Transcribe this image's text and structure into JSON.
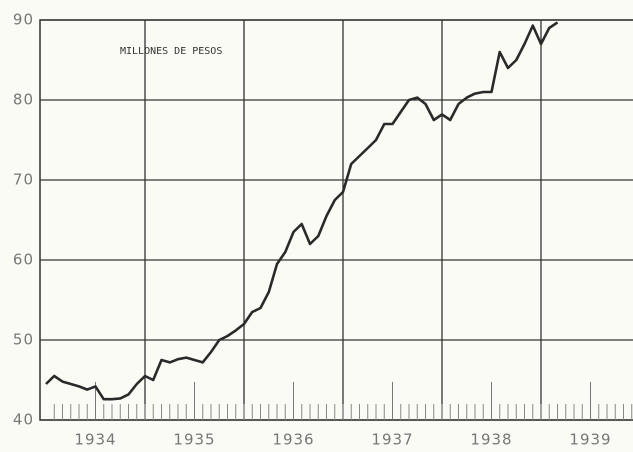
{
  "chart_data": {
    "type": "line",
    "annotation": "MILLONES DE PESOS",
    "x": [
      1934.0,
      1934.083,
      1934.167,
      1934.25,
      1934.333,
      1934.417,
      1934.5,
      1934.583,
      1934.667,
      1934.75,
      1934.833,
      1934.917,
      1935.0,
      1935.083,
      1935.167,
      1935.25,
      1935.333,
      1935.417,
      1935.5,
      1935.583,
      1935.667,
      1935.75,
      1935.833,
      1935.917,
      1936.0,
      1936.083,
      1936.167,
      1936.25,
      1936.333,
      1936.417,
      1936.5,
      1936.583,
      1936.667,
      1936.75,
      1936.833,
      1936.917,
      1937.0,
      1937.083,
      1937.167,
      1937.25,
      1937.333,
      1937.417,
      1937.5,
      1937.583,
      1937.667,
      1937.75,
      1937.833,
      1937.917,
      1938.0,
      1938.083,
      1938.167,
      1938.25,
      1938.333,
      1938.417,
      1938.5,
      1938.583,
      1938.667,
      1938.75,
      1938.833,
      1938.917,
      1939.0,
      1939.083,
      1939.167
    ],
    "series": [
      {
        "color": "#2a2a2a",
        "values": [
          44.5,
          45.5,
          44.8,
          44.5,
          44.2,
          43.8,
          44.2,
          42.6,
          42.6,
          42.7,
          43.2,
          44.5,
          45.5,
          45,
          47.5,
          47.2,
          47.6,
          47.8,
          47.5,
          47.2,
          48.5,
          50,
          50.5,
          51.2,
          52,
          53.5,
          54,
          56,
          59.5,
          61,
          63.5,
          64.5,
          62,
          63,
          65.5,
          67.5,
          68.5,
          72,
          73,
          74,
          75,
          77,
          77,
          78.5,
          80,
          80.3,
          79.5,
          77.5,
          78.2,
          77.5,
          79.5,
          80.3,
          80.8,
          81,
          81,
          86,
          84,
          85,
          87,
          89.3,
          87,
          89,
          89.7
        ]
      }
    ],
    "xlim": [
      1934,
      1940
    ],
    "xticks": [
      {
        "value": 1934.5,
        "label": "1934"
      },
      {
        "value": 1935.5,
        "label": "1935"
      },
      {
        "value": 1936.5,
        "label": "1936"
      },
      {
        "value": 1937.5,
        "label": "1937"
      },
      {
        "value": 1938.5,
        "label": "1938"
      },
      {
        "value": 1939.5,
        "label": "1939"
      }
    ],
    "xgrid": [
      1935,
      1936,
      1937,
      1938,
      1939
    ],
    "ylim": [
      40,
      90
    ],
    "yticks": [
      40,
      50,
      60,
      70,
      80,
      90
    ],
    "grid": true
  }
}
